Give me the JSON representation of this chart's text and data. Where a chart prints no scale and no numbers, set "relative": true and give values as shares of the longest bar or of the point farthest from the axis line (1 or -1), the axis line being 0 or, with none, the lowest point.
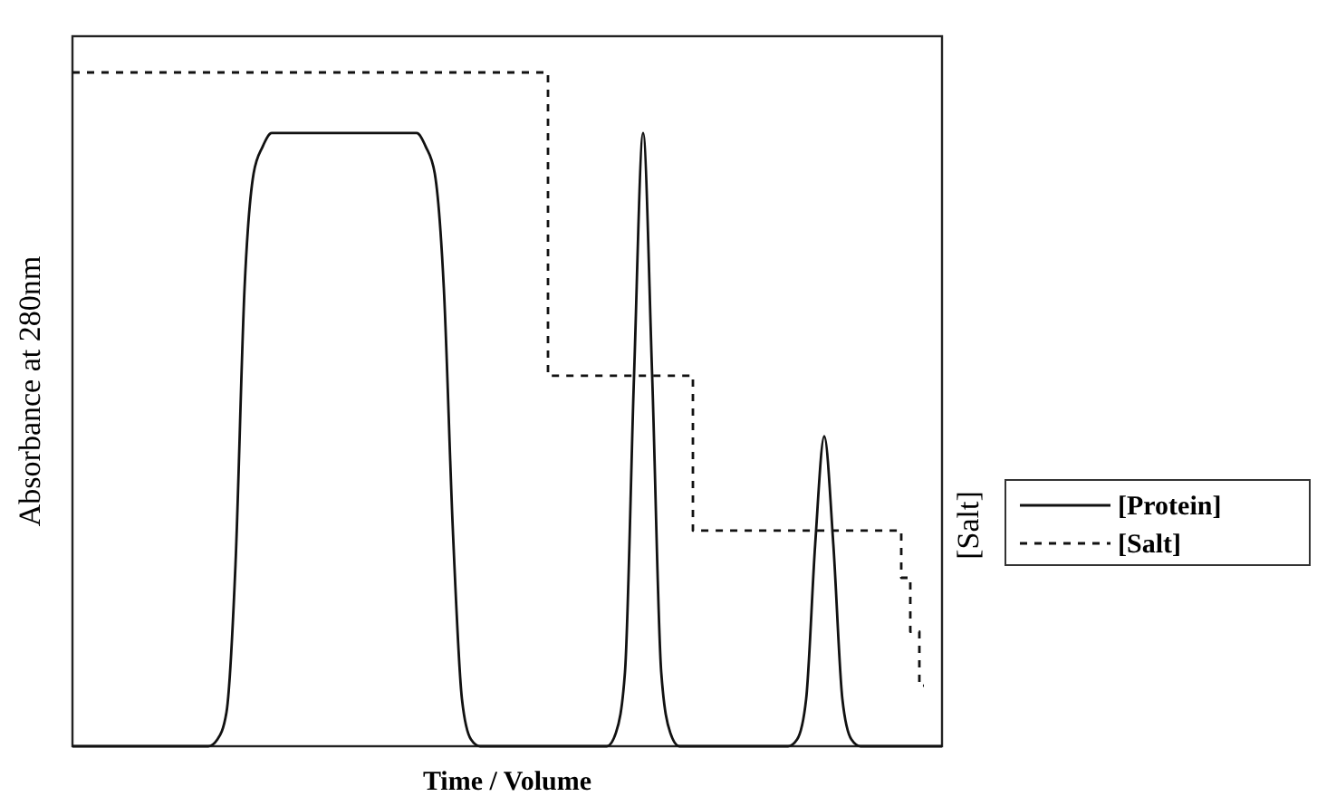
{
  "chart_data": {
    "type": "line",
    "relative": true,
    "xlabel": "Time / Volume",
    "ylabel": "Absorbance at 280nm",
    "y2label": "[Salt]",
    "legend": "right",
    "categories": [
      null,
      null,
      null,
      null,
      null,
      null,
      null,
      null,
      null,
      null,
      null,
      null,
      null,
      null,
      null,
      null,
      null,
      null,
      null,
      null,
      null,
      null,
      null,
      null,
      null,
      null,
      null,
      null,
      null,
      null,
      null,
      null,
      null,
      null,
      null,
      null,
      null,
      null,
      null,
      null,
      null,
      null,
      null,
      null,
      null,
      null,
      null,
      null,
      null,
      null,
      null,
      null,
      null,
      null,
      null,
      null,
      null,
      null,
      null,
      null,
      null,
      null,
      null,
      null,
      null,
      null,
      null,
      null,
      null,
      null,
      null,
      null,
      null,
      null,
      null,
      null,
      null,
      null,
      null,
      null,
      null,
      null,
      null,
      null,
      null,
      null,
      null,
      null,
      null,
      null,
      null,
      null,
      null,
      null,
      null,
      null,
      null
    ],
    "series": [
      {
        "name": "[Protein]",
        "color": "#111111",
        "line_style": "solid",
        "values": [
          0,
          0,
          0,
          0,
          0,
          0,
          0,
          0,
          0,
          0,
          0,
          0,
          0,
          0,
          0,
          0,
          0.01,
          0.05,
          0.27,
          0.68,
          0.85,
          0.89,
          0.91,
          0.91,
          0.91,
          0.91,
          0.91,
          0.91,
          0.91,
          0.91,
          0.91,
          0.91,
          0.91,
          0.91,
          0.91,
          0.91,
          0.91,
          0.91,
          0.91,
          0.89,
          0.85,
          0.68,
          0.32,
          0.07,
          0.01,
          0,
          0,
          0,
          0,
          0,
          0,
          0,
          0,
          0,
          0,
          0,
          0,
          0,
          0,
          0,
          0.02,
          0.11,
          0.55,
          0.91,
          0.55,
          0.11,
          0.02,
          0,
          0,
          0,
          0,
          0,
          0,
          0,
          0,
          0,
          0,
          0,
          0,
          0,
          0.01,
          0.07,
          0.3,
          0.46,
          0.3,
          0.07,
          0.01,
          0,
          0,
          0,
          0,
          0,
          0,
          0,
          0,
          0,
          0
        ]
      },
      {
        "name": "[Salt]",
        "color": "#111111",
        "type": "step",
        "line_style": "dashed",
        "values": [
          1,
          1,
          1,
          1,
          1,
          1,
          1,
          1,
          1,
          1,
          1,
          1,
          1,
          1,
          1,
          1,
          1,
          1,
          1,
          1,
          1,
          1,
          1,
          1,
          1,
          1,
          1,
          1,
          1,
          1,
          1,
          1,
          1,
          1,
          1,
          1,
          1,
          1,
          1,
          1,
          1,
          1,
          1,
          1,
          1,
          1,
          1,
          1,
          1,
          1,
          1,
          1,
          1,
          0.55,
          0.55,
          0.55,
          0.55,
          0.55,
          0.55,
          0.55,
          0.55,
          0.55,
          0.55,
          0.55,
          0.55,
          0.55,
          0.55,
          0.55,
          0.55,
          0.32,
          0.32,
          0.32,
          0.32,
          0.32,
          0.32,
          0.32,
          0.32,
          0.32,
          0.32,
          0.32,
          0.32,
          0.32,
          0.32,
          0.32,
          0.32,
          0.32,
          0.32,
          0.32,
          0.32,
          0.32,
          0.32,
          0.32,
          0.25,
          0.17,
          0.09,
          null,
          null
        ]
      }
    ]
  }
}
